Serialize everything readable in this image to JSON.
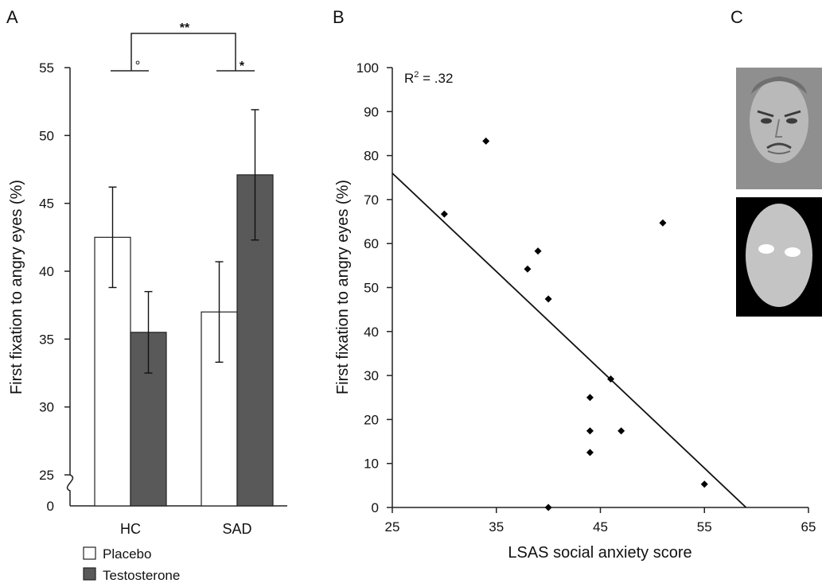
{
  "figure": {
    "panel_labels": [
      "A",
      "B",
      "C"
    ]
  },
  "chart_data": [
    {
      "type": "bar",
      "panel": "A",
      "categories": [
        "HC",
        "SAD"
      ],
      "series": [
        {
          "name": "Placebo",
          "values": [
            42.5,
            37.0
          ],
          "errors": [
            3.7,
            3.7
          ],
          "color": "#ffffff"
        },
        {
          "name": "Testosterone",
          "values": [
            35.5,
            47.1
          ],
          "errors": [
            3.0,
            4.8
          ],
          "color": "#595959"
        }
      ],
      "ylabel": "First  fixation to angry eyes (%)",
      "ylim": [
        25,
        55
      ],
      "yticks": [
        25,
        30,
        35,
        40,
        45,
        50,
        55
      ],
      "ybreak_label": "0",
      "axis_break": true,
      "legend_placement": "bottom-left",
      "significance": {
        "top": "**",
        "hc": "°",
        "sad": "*"
      }
    },
    {
      "type": "scatter",
      "panel": "B",
      "x": [
        30,
        34,
        38,
        39,
        40,
        40,
        44,
        44,
        44,
        46,
        47,
        51,
        55
      ],
      "y": [
        66.7,
        83.3,
        54.2,
        58.3,
        47.4,
        0,
        25,
        17.4,
        12.5,
        29.2,
        17.4,
        64.7,
        5.3
      ],
      "xlabel": "LSAS social anxiety score",
      "ylabel": "First  fixation to angry eyes (%)",
      "xlim": [
        25,
        65
      ],
      "ylim": [
        0,
        100
      ],
      "xticks": [
        25,
        35,
        45,
        55,
        65
      ],
      "yticks": [
        0,
        10,
        20,
        30,
        40,
        50,
        60,
        70,
        80,
        90,
        100
      ],
      "fit_line": {
        "x": [
          25,
          59
        ],
        "y": [
          76,
          0
        ]
      },
      "r2_prefix": "R",
      "r2_exponent": "2",
      "r2_value": " = .32",
      "grid": false
    }
  ],
  "panel_c": {
    "images": [
      "angry-face-photo",
      "face-mask-schematic"
    ]
  }
}
